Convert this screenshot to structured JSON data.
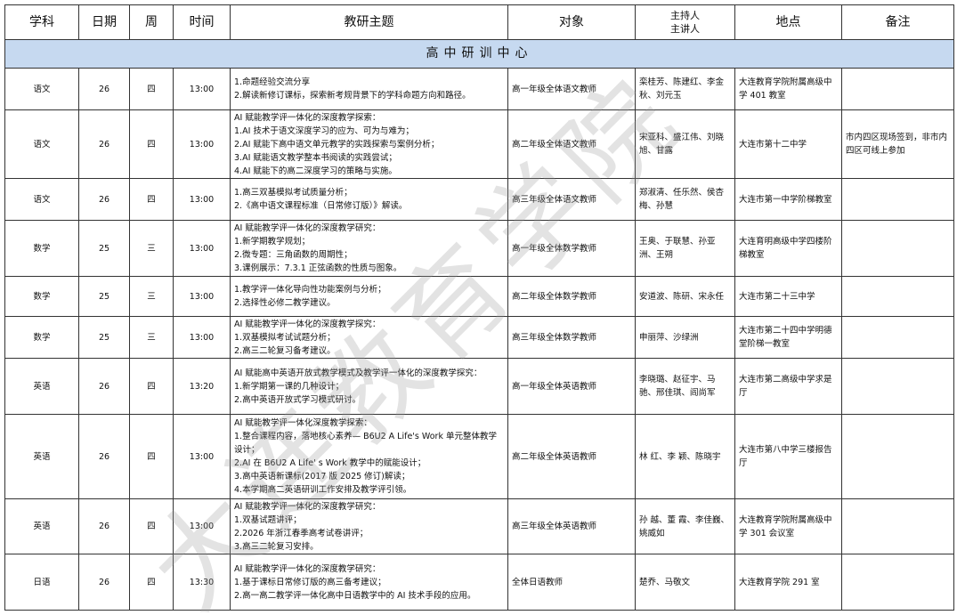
{
  "headers": [
    "学科",
    "日期",
    "周",
    "时间",
    "教研主题",
    "对象",
    "主持人\n主讲人",
    "地点",
    "备注"
  ],
  "section_title": "高中研训中心",
  "watermark": "大连教育学院",
  "rows": [
    {
      "subject": "语文",
      "date": "26",
      "weekday": "四",
      "time": "13:00",
      "topic": [
        "1.命题经验交流分享",
        "2.解读新修订课标，探索新考规背景下的学科命题方向和路径。"
      ],
      "audience": "高一年级全体语文教师",
      "hosts": "栾桂芳、陈建红、李金秋、刘元玉",
      "location": "大连教育学院附属高级中学 401 教室",
      "note": ""
    },
    {
      "subject": "语文",
      "date": "26",
      "weekday": "四",
      "time": "13:00",
      "topic": [
        "AI 赋能教学评一体化的深度教学探索：",
        "1.AI 技术于语文深度学习的应为、可为与难为；",
        "2.AI 赋能下高中语文单元教学的实践探索与案例分析；",
        "3.AI 赋能语文教学整本书阅读的实践尝试；",
        "4.AI 赋能下的高二深度学习的策略与实施。"
      ],
      "audience": "高二年级全体语文教师",
      "hosts": "宋亚科、盛江伟、刘晓旭、甘露",
      "location": "大连市第十二中学",
      "note": "市内四区现场签到，非市内四区可线上参加"
    },
    {
      "subject": "语文",
      "date": "26",
      "weekday": "四",
      "time": "13:00",
      "topic": [
        "1.高三双基模拟考试质量分析；",
        "2.《高中语文课程标准（日常修订版）》解读。"
      ],
      "audience": "高三年级全体语文教师",
      "hosts": "郑淑清、任乐然、侯杏梅、孙慧",
      "location": "大连市第一中学阶梯教室",
      "note": ""
    },
    {
      "subject": "数学",
      "date": "25",
      "weekday": "三",
      "time": "13:00",
      "topic": [
        "AI 赋能教学评一体化的深度教学研究：",
        "1.新学期教学规划；",
        "2.微专题：三角函数的周期性；",
        "3.课例展示：7.3.1 正弦函数的性质与图象。"
      ],
      "audience": "高一年级全体数学教师",
      "hosts": "王奥、于联慧、孙亚洲、王朔",
      "location": "大连育明高级中学四楼阶梯教室",
      "note": ""
    },
    {
      "subject": "数学",
      "date": "25",
      "weekday": "三",
      "time": "13:00",
      "topic": [
        "1.教学评一体化导向性功能案例与分析；",
        "2.选择性必修二教学建议。"
      ],
      "audience": "高二年级全体数学教师",
      "hosts": "安道波、陈研、宋永任",
      "location": "大连市第二十三中学",
      "note": ""
    },
    {
      "subject": "数学",
      "date": "25",
      "weekday": "三",
      "time": "13:00",
      "topic": [
        "AI 赋能教学评一体化的深度教学探究：",
        "1.双基模拟考试试题分析；",
        "2.高三二轮复习备考建议。"
      ],
      "audience": "高三年级全体数学教师",
      "hosts": "申丽萍、沙绿洲",
      "location": "大连市第二十四中学明德堂阶梯一教室",
      "note": ""
    },
    {
      "subject": "英语",
      "date": "26",
      "weekday": "四",
      "time": "13:20",
      "topic": [
        "AI 赋能高中英语开放式教学模式及教学评一体化的深度教学探究：",
        "1.新学期第一课的几种设计；",
        "2.高中英语开放式学习模式研讨。"
      ],
      "audience": "高一年级全体英语教师",
      "hosts": "李晓璐、赵征宇、马驰、邢佳琪、阎尚军",
      "location": "大连市第二高级中学求是厅",
      "note": ""
    },
    {
      "subject": "英语",
      "date": "26",
      "weekday": "四",
      "time": "13:00",
      "topic": [
        "AI 赋能教学评一体化深度教学探索：",
        "1.整合课程内容，落地核心素养— B6U2 A Life's Work 单元整体教学设计；",
        "2.AI 在 B6U2 A Life' s Work 教学中的赋能设计；",
        "3.高中英语新课标(2017 版 2025 修订)解读；",
        "4.本学期高二英语研训工作安排及教学评引领。"
      ],
      "audience": "高二年级全体英语教师",
      "hosts": "林 红、李 颖、陈晓宇",
      "location": "大连市第八中学三楼报告厅",
      "note": ""
    },
    {
      "subject": "英语",
      "date": "26",
      "weekday": "四",
      "time": "13:00",
      "topic": [
        "AI 赋能教学评一体化的深度教学研究：",
        "1.双基试题讲评；",
        "2.2026 年浙江春季高考试卷讲评；",
        "3.高三二轮复习安排。"
      ],
      "audience": "高三年级全体英语教师",
      "hosts": "孙 越、董 霞、李佳巍、姚威如",
      "location": "大连教育学院附属高级中学 301 会议室",
      "note": ""
    },
    {
      "subject": "日语",
      "date": "26",
      "weekday": "四",
      "time": "13:30",
      "topic": [
        "AI 赋能教学评一体化的深度教学研究：",
        "1.基于课标日常修订版的高三备考建议；",
        "2.高一高二教学评一体化高中日语教学中的 AI 技术手段的应用。"
      ],
      "audience": "全体日语教师",
      "hosts": "楚乔、马敬文",
      "location": "大连教育学院 291 室",
      "note": ""
    }
  ]
}
